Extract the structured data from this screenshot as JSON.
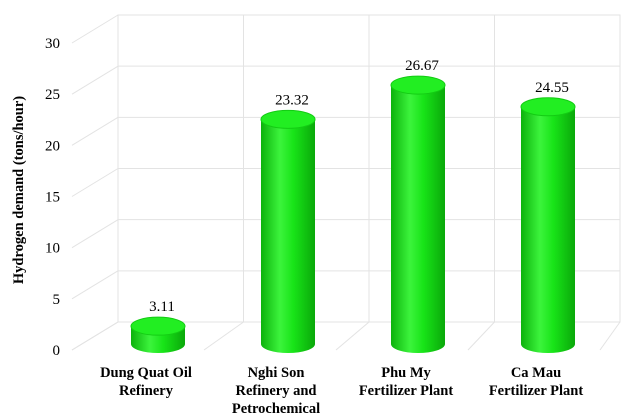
{
  "chart_data": {
    "type": "bar",
    "style": "3d-cylinder",
    "bar_color": "#16e016",
    "title": "",
    "xlabel": "",
    "ylabel": "Hydrogen demand (tons/hour)",
    "ylim": [
      0,
      30
    ],
    "yticks": [
      0,
      5,
      10,
      15,
      20,
      25,
      30
    ],
    "grid": true,
    "categories": [
      [
        "Dung Quat Oil",
        "Refinery"
      ],
      [
        "Nghi Son",
        "Refinery and",
        "Petrochemical"
      ],
      [
        "Phu My",
        "Fertilizer Plant"
      ],
      [
        "Ca Mau",
        "Fertilizer Plant"
      ]
    ],
    "values": [
      3.11,
      23.32,
      26.67,
      24.55
    ],
    "data_labels": [
      "3.11",
      "23.32",
      "26.67",
      "24.55"
    ]
  }
}
